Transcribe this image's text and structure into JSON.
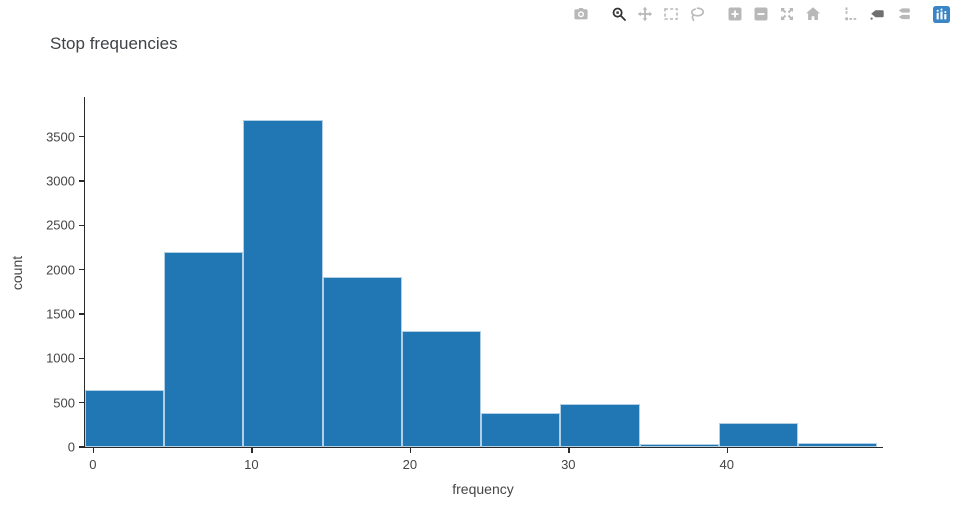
{
  "title": "Stop frequencies",
  "modebar": {
    "groups": [
      [
        "camera"
      ],
      [
        "zoom",
        "pan",
        "box-select",
        "lasso-select"
      ],
      [
        "zoom-in",
        "zoom-out",
        "autoscale",
        "reset-axes"
      ],
      [
        "spike-lines",
        "hover-closest",
        "hover-compare"
      ],
      [
        "plotly-logo"
      ]
    ],
    "active_icons": [
      "zoom"
    ],
    "semi_active_icons": [
      "hover-closest"
    ],
    "inactive_color": "#b8b8b8",
    "active_color": "#333333",
    "semi_active_color": "#6f6f6f",
    "logo_color": "#3a85c6"
  },
  "chart_data": {
    "type": "bar",
    "subtype": "histogram",
    "title": "Stop frequencies",
    "xlabel": "frequency",
    "ylabel": "count",
    "bar_color": "#2077b4",
    "bin_edges": [
      -0.5,
      4.5,
      9.5,
      14.5,
      19.5,
      24.5,
      29.5,
      34.5,
      39.5,
      44.5,
      49.5
    ],
    "counts": [
      645,
      2200,
      3690,
      1915,
      1310,
      380,
      490,
      30,
      270,
      50
    ],
    "x_ticks": [
      0,
      10,
      20,
      30,
      40
    ],
    "y_ticks": [
      0,
      500,
      1000,
      1500,
      2000,
      2500,
      3000,
      3500
    ],
    "xlim": [
      -0.5,
      49.86
    ],
    "ylim": [
      0,
      3947
    ],
    "grid": false,
    "legend": "none"
  }
}
